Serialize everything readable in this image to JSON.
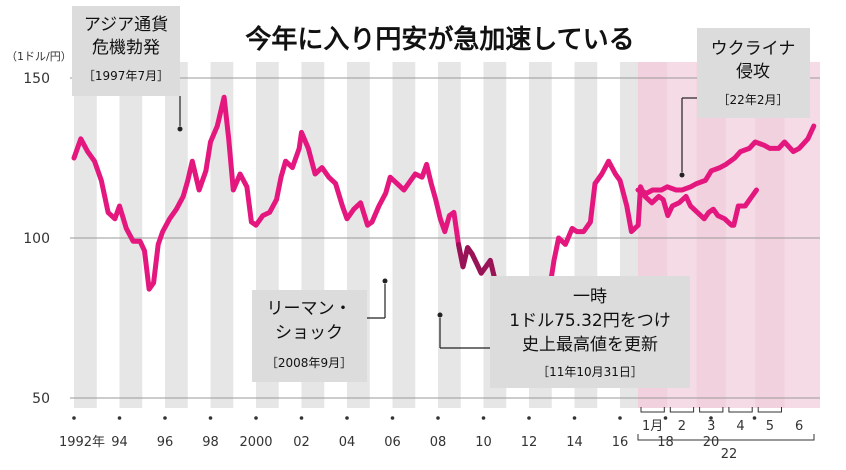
{
  "chart_data": {
    "type": "line",
    "title": "今年に入り円安が急加速している",
    "unit_label": "（1ドル/円）",
    "ylim": [
      50,
      150
    ],
    "y_ticks": [
      50,
      100,
      150
    ],
    "x_tick_labels": [
      "1992年",
      "94",
      "96",
      "98",
      "2000",
      "02",
      "04",
      "06",
      "08",
      "10",
      "12",
      "14",
      "16",
      "18",
      "20"
    ],
    "month_tick_labels": [
      "1月",
      "2",
      "3",
      "4",
      "5",
      "6"
    ],
    "year_2022_label": "22",
    "series": [
      {
        "values": [
          [
            1992.0,
            125
          ],
          [
            1992.3,
            131
          ],
          [
            1992.6,
            127
          ],
          [
            1992.9,
            124
          ],
          [
            1993.2,
            118
          ],
          [
            1993.5,
            108
          ],
          [
            1993.8,
            106
          ],
          [
            1994.0,
            110
          ],
          [
            1994.3,
            103
          ],
          [
            1994.6,
            99
          ],
          [
            1994.9,
            99
          ],
          [
            1995.1,
            96
          ],
          [
            1995.3,
            84
          ],
          [
            1995.5,
            86
          ],
          [
            1995.7,
            98
          ],
          [
            1995.9,
            102
          ],
          [
            1996.2,
            106
          ],
          [
            1996.5,
            109
          ],
          [
            1996.8,
            113
          ],
          [
            1997.0,
            118
          ],
          [
            1997.2,
            124
          ],
          [
            1997.5,
            115
          ],
          [
            1997.8,
            121
          ],
          [
            1998.0,
            130
          ],
          [
            1998.3,
            135
          ],
          [
            1998.6,
            144
          ],
          [
            1998.8,
            131
          ],
          [
            1999.0,
            115
          ],
          [
            1999.3,
            120
          ],
          [
            1999.6,
            116
          ],
          [
            1999.8,
            105
          ],
          [
            2000.0,
            104
          ],
          [
            2000.3,
            107
          ],
          [
            2000.6,
            108
          ],
          [
            2000.9,
            112
          ],
          [
            2001.1,
            119
          ],
          [
            2001.3,
            124
          ],
          [
            2001.6,
            122
          ],
          [
            2001.9,
            128
          ],
          [
            2002.0,
            133
          ],
          [
            2002.3,
            128
          ],
          [
            2002.6,
            120
          ],
          [
            2002.9,
            122
          ],
          [
            2003.2,
            119
          ],
          [
            2003.5,
            117
          ],
          [
            2003.8,
            110
          ],
          [
            2004.0,
            106
          ],
          [
            2004.3,
            109
          ],
          [
            2004.6,
            111
          ],
          [
            2004.9,
            104
          ],
          [
            2005.1,
            105
          ],
          [
            2005.4,
            110
          ],
          [
            2005.7,
            114
          ],
          [
            2005.9,
            119
          ],
          [
            2006.2,
            117
          ],
          [
            2006.5,
            115
          ],
          [
            2006.8,
            118
          ],
          [
            2007.0,
            120
          ],
          [
            2007.3,
            119
          ],
          [
            2007.5,
            123
          ],
          [
            2007.7,
            117
          ],
          [
            2007.9,
            112
          ],
          [
            2008.1,
            106
          ],
          [
            2008.3,
            102
          ],
          [
            2008.5,
            107
          ],
          [
            2008.7,
            108
          ],
          [
            2008.9,
            98
          ],
          [
            2009.1,
            91
          ],
          [
            2009.3,
            97
          ],
          [
            2009.5,
            95
          ],
          [
            2009.7,
            92
          ],
          [
            2009.9,
            89
          ],
          [
            2010.1,
            91
          ],
          [
            2010.3,
            93
          ],
          [
            2010.5,
            87
          ],
          [
            2010.7,
            85
          ],
          [
            2010.9,
            83
          ],
          [
            2011.1,
            83
          ],
          [
            2011.3,
            81
          ],
          [
            2011.6,
            78
          ],
          [
            2011.8,
            77
          ],
          [
            2012.0,
            77
          ],
          [
            2012.2,
            82
          ],
          [
            2012.4,
            79
          ],
          [
            2012.6,
            78
          ],
          [
            2012.8,
            80
          ],
          [
            2012.9,
            84
          ],
          [
            2013.1,
            93
          ],
          [
            2013.3,
            100
          ],
          [
            2013.6,
            98
          ],
          [
            2013.9,
            103
          ],
          [
            2014.1,
            102
          ],
          [
            2014.4,
            102
          ],
          [
            2014.7,
            105
          ],
          [
            2014.9,
            117
          ],
          [
            2015.2,
            120
          ],
          [
            2015.5,
            124
          ],
          [
            2015.8,
            120
          ],
          [
            2016.0,
            118
          ],
          [
            2016.3,
            110
          ],
          [
            2016.5,
            102
          ],
          [
            2016.8,
            104
          ],
          [
            2016.9,
            116
          ],
          [
            2017.1,
            113
          ],
          [
            2017.4,
            111
          ],
          [
            2017.7,
            113
          ],
          [
            2017.9,
            112
          ],
          [
            2018.1,
            107
          ],
          [
            2018.3,
            110
          ],
          [
            2018.6,
            111
          ],
          [
            2018.9,
            113
          ],
          [
            2019.1,
            110
          ],
          [
            2019.4,
            108
          ],
          [
            2019.7,
            106
          ],
          [
            2019.9,
            108
          ],
          [
            2020.1,
            109
          ],
          [
            2020.3,
            107
          ],
          [
            2020.6,
            106
          ],
          [
            2020.9,
            104
          ],
          [
            2021.0,
            104
          ],
          [
            2021.2,
            110
          ],
          [
            2021.5,
            110
          ],
          [
            2021.8,
            113
          ],
          [
            2022.0,
            115
          ]
        ]
      },
      {
        "values": [
          [
            0.0,
            115
          ],
          [
            0.3,
            114
          ],
          [
            0.5,
            115
          ],
          [
            0.8,
            115
          ],
          [
            1.0,
            116
          ],
          [
            1.3,
            115
          ],
          [
            1.5,
            115
          ],
          [
            1.8,
            116
          ],
          [
            2.0,
            117
          ],
          [
            2.3,
            118
          ],
          [
            2.5,
            121
          ],
          [
            2.8,
            122
          ],
          [
            3.0,
            123
          ],
          [
            3.3,
            125
          ],
          [
            3.5,
            127
          ],
          [
            3.8,
            128
          ],
          [
            4.0,
            130
          ],
          [
            4.3,
            129
          ],
          [
            4.5,
            128
          ],
          [
            4.8,
            128
          ],
          [
            5.0,
            130
          ],
          [
            5.3,
            127
          ],
          [
            5.5,
            128
          ],
          [
            5.8,
            131
          ],
          [
            6.0,
            135
          ]
        ]
      }
    ],
    "annotations": [
      {
        "lines": [
          "アジア通貨",
          "危機勃発"
        ],
        "date": "［1997年7月］"
      },
      {
        "lines": [
          "ウクライナ",
          "侵攻"
        ],
        "date": "［22年2月］"
      },
      {
        "lines": [
          "リーマン・",
          "ショック"
        ],
        "date": "［2008年9月］"
      },
      {
        "lines": [
          "一時",
          "1ドル75.32円をつけ",
          "史上最高値を更新"
        ],
        "date": "［11年10月31日］"
      }
    ],
    "colors": {
      "line": "#e4177f",
      "line_dark": "#8c1450",
      "shade_2022": "#f5dbe6",
      "stripe": "#e6e6e6",
      "label_box": "#dcdcdc"
    }
  }
}
